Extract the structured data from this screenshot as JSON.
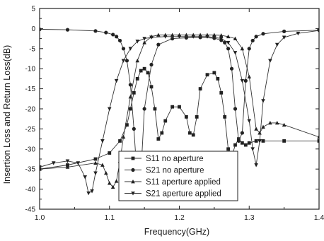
{
  "chart_data": {
    "type": "line",
    "title": "",
    "xlabel": "Frequency(GHz)",
    "ylabel": "Insertion Loss and Return Loss(dB)",
    "xlim": [
      1.0,
      1.4
    ],
    "ylim": [
      -45,
      5
    ],
    "xticks": [
      1.0,
      1.1,
      1.2,
      1.3,
      1.4
    ],
    "xtick_labels": [
      "1.0",
      "1.1",
      "1.2",
      "1.3",
      "1.4"
    ],
    "yticks": [
      5,
      0,
      -5,
      -10,
      -15,
      -20,
      -25,
      -30,
      -35,
      -40,
      -45
    ],
    "ytick_labels": [
      "5",
      "0",
      "-5",
      "-10",
      "-15",
      "-20",
      "-25",
      "-30",
      "-35",
      "-40",
      "-45"
    ],
    "grid": false,
    "legend_position": "bottom-center",
    "series": [
      {
        "name": "S11 no aperture",
        "marker": "square",
        "x": [
          1.0,
          1.04,
          1.08,
          1.1,
          1.115,
          1.125,
          1.13,
          1.135,
          1.14,
          1.145,
          1.15,
          1.155,
          1.16,
          1.165,
          1.17,
          1.175,
          1.18,
          1.19,
          1.2,
          1.21,
          1.215,
          1.22,
          1.225,
          1.23,
          1.24,
          1.25,
          1.255,
          1.26,
          1.265,
          1.27,
          1.275,
          1.28,
          1.285,
          1.29,
          1.295,
          1.3,
          1.31,
          1.32,
          1.35,
          1.4
        ],
        "y": [
          -35.0,
          -34.0,
          -32.5,
          -31.0,
          -28.0,
          -24.0,
          -20.0,
          -16.0,
          -12.5,
          -10.5,
          -10.0,
          -11.0,
          -14.5,
          -20.0,
          -27.5,
          -26.0,
          -23.0,
          -19.5,
          -19.5,
          -22.0,
          -26.0,
          -26.5,
          -22.0,
          -15.0,
          -11.5,
          -11.0,
          -12.5,
          -16.0,
          -22.0,
          -30.0,
          -32.0,
          -29.0,
          -27.5,
          -28.5,
          -29.0,
          -28.5,
          -28.0,
          -28.0,
          -28.0,
          -28.0
        ]
      },
      {
        "name": "S21 no aperture",
        "marker": "circle",
        "x": [
          1.0,
          1.04,
          1.08,
          1.095,
          1.105,
          1.11,
          1.115,
          1.12,
          1.125,
          1.13,
          1.135,
          1.14,
          1.145,
          1.15,
          1.16,
          1.17,
          1.19,
          1.21,
          1.23,
          1.25,
          1.26,
          1.265,
          1.27,
          1.275,
          1.28,
          1.285,
          1.29,
          1.295,
          1.3,
          1.305,
          1.31,
          1.32,
          1.35,
          1.4
        ],
        "y": [
          -0.2,
          -0.3,
          -0.6,
          -1.0,
          -1.5,
          -2.0,
          -3.0,
          -5.0,
          -8.0,
          -14.0,
          -25.0,
          -38.0,
          -36.0,
          -20.0,
          -9.0,
          -4.0,
          -2.5,
          -2.3,
          -2.2,
          -2.4,
          -2.9,
          -3.5,
          -5.0,
          -10.0,
          -20.0,
          -28.0,
          -26.0,
          -13.0,
          -5.0,
          -3.0,
          -2.0,
          -1.3,
          -0.7,
          -0.4
        ]
      },
      {
        "name": "S11 aperture applied",
        "marker": "triangle-up",
        "x": [
          1.0,
          1.04,
          1.08,
          1.09,
          1.095,
          1.1,
          1.105,
          1.11,
          1.115,
          1.12,
          1.13,
          1.14,
          1.15,
          1.16,
          1.17,
          1.18,
          1.19,
          1.2,
          1.21,
          1.22,
          1.23,
          1.24,
          1.25,
          1.26,
          1.27,
          1.28,
          1.29,
          1.3,
          1.31,
          1.315,
          1.32,
          1.33,
          1.34,
          1.35,
          1.4
        ],
        "y": [
          -35.0,
          -34.5,
          -33.5,
          -34.0,
          -36.0,
          -38.5,
          -39.5,
          -38.0,
          -33.0,
          -27.0,
          -17.0,
          -8.0,
          -3.5,
          -2.0,
          -1.6,
          -1.6,
          -1.6,
          -1.6,
          -1.6,
          -1.6,
          -1.6,
          -1.6,
          -1.6,
          -1.7,
          -2.0,
          -2.5,
          -5.0,
          -12.0,
          -25.0,
          -26.0,
          -24.5,
          -23.5,
          -23.5,
          -24.0,
          -27.0
        ]
      },
      {
        "name": "S21 aperture applied",
        "marker": "triangle-down",
        "x": [
          1.0,
          1.02,
          1.04,
          1.055,
          1.065,
          1.07,
          1.075,
          1.08,
          1.09,
          1.1,
          1.11,
          1.12,
          1.13,
          1.14,
          1.15,
          1.16,
          1.18,
          1.2,
          1.22,
          1.24,
          1.25,
          1.26,
          1.27,
          1.28,
          1.29,
          1.3,
          1.305,
          1.31,
          1.315,
          1.32,
          1.33,
          1.34,
          1.35,
          1.37,
          1.4
        ],
        "y": [
          -34.5,
          -33.5,
          -33.0,
          -33.5,
          -37.0,
          -41.0,
          -40.5,
          -36.0,
          -28.0,
          -20.0,
          -13.0,
          -8.0,
          -5.0,
          -3.2,
          -2.5,
          -2.2,
          -2.0,
          -2.0,
          -2.0,
          -2.0,
          -2.2,
          -2.5,
          -3.5,
          -6.0,
          -13.0,
          -23.0,
          -30.0,
          -34.0,
          -28.0,
          -18.0,
          -8.0,
          -4.0,
          -2.2,
          -1.2,
          -0.5
        ]
      }
    ]
  }
}
